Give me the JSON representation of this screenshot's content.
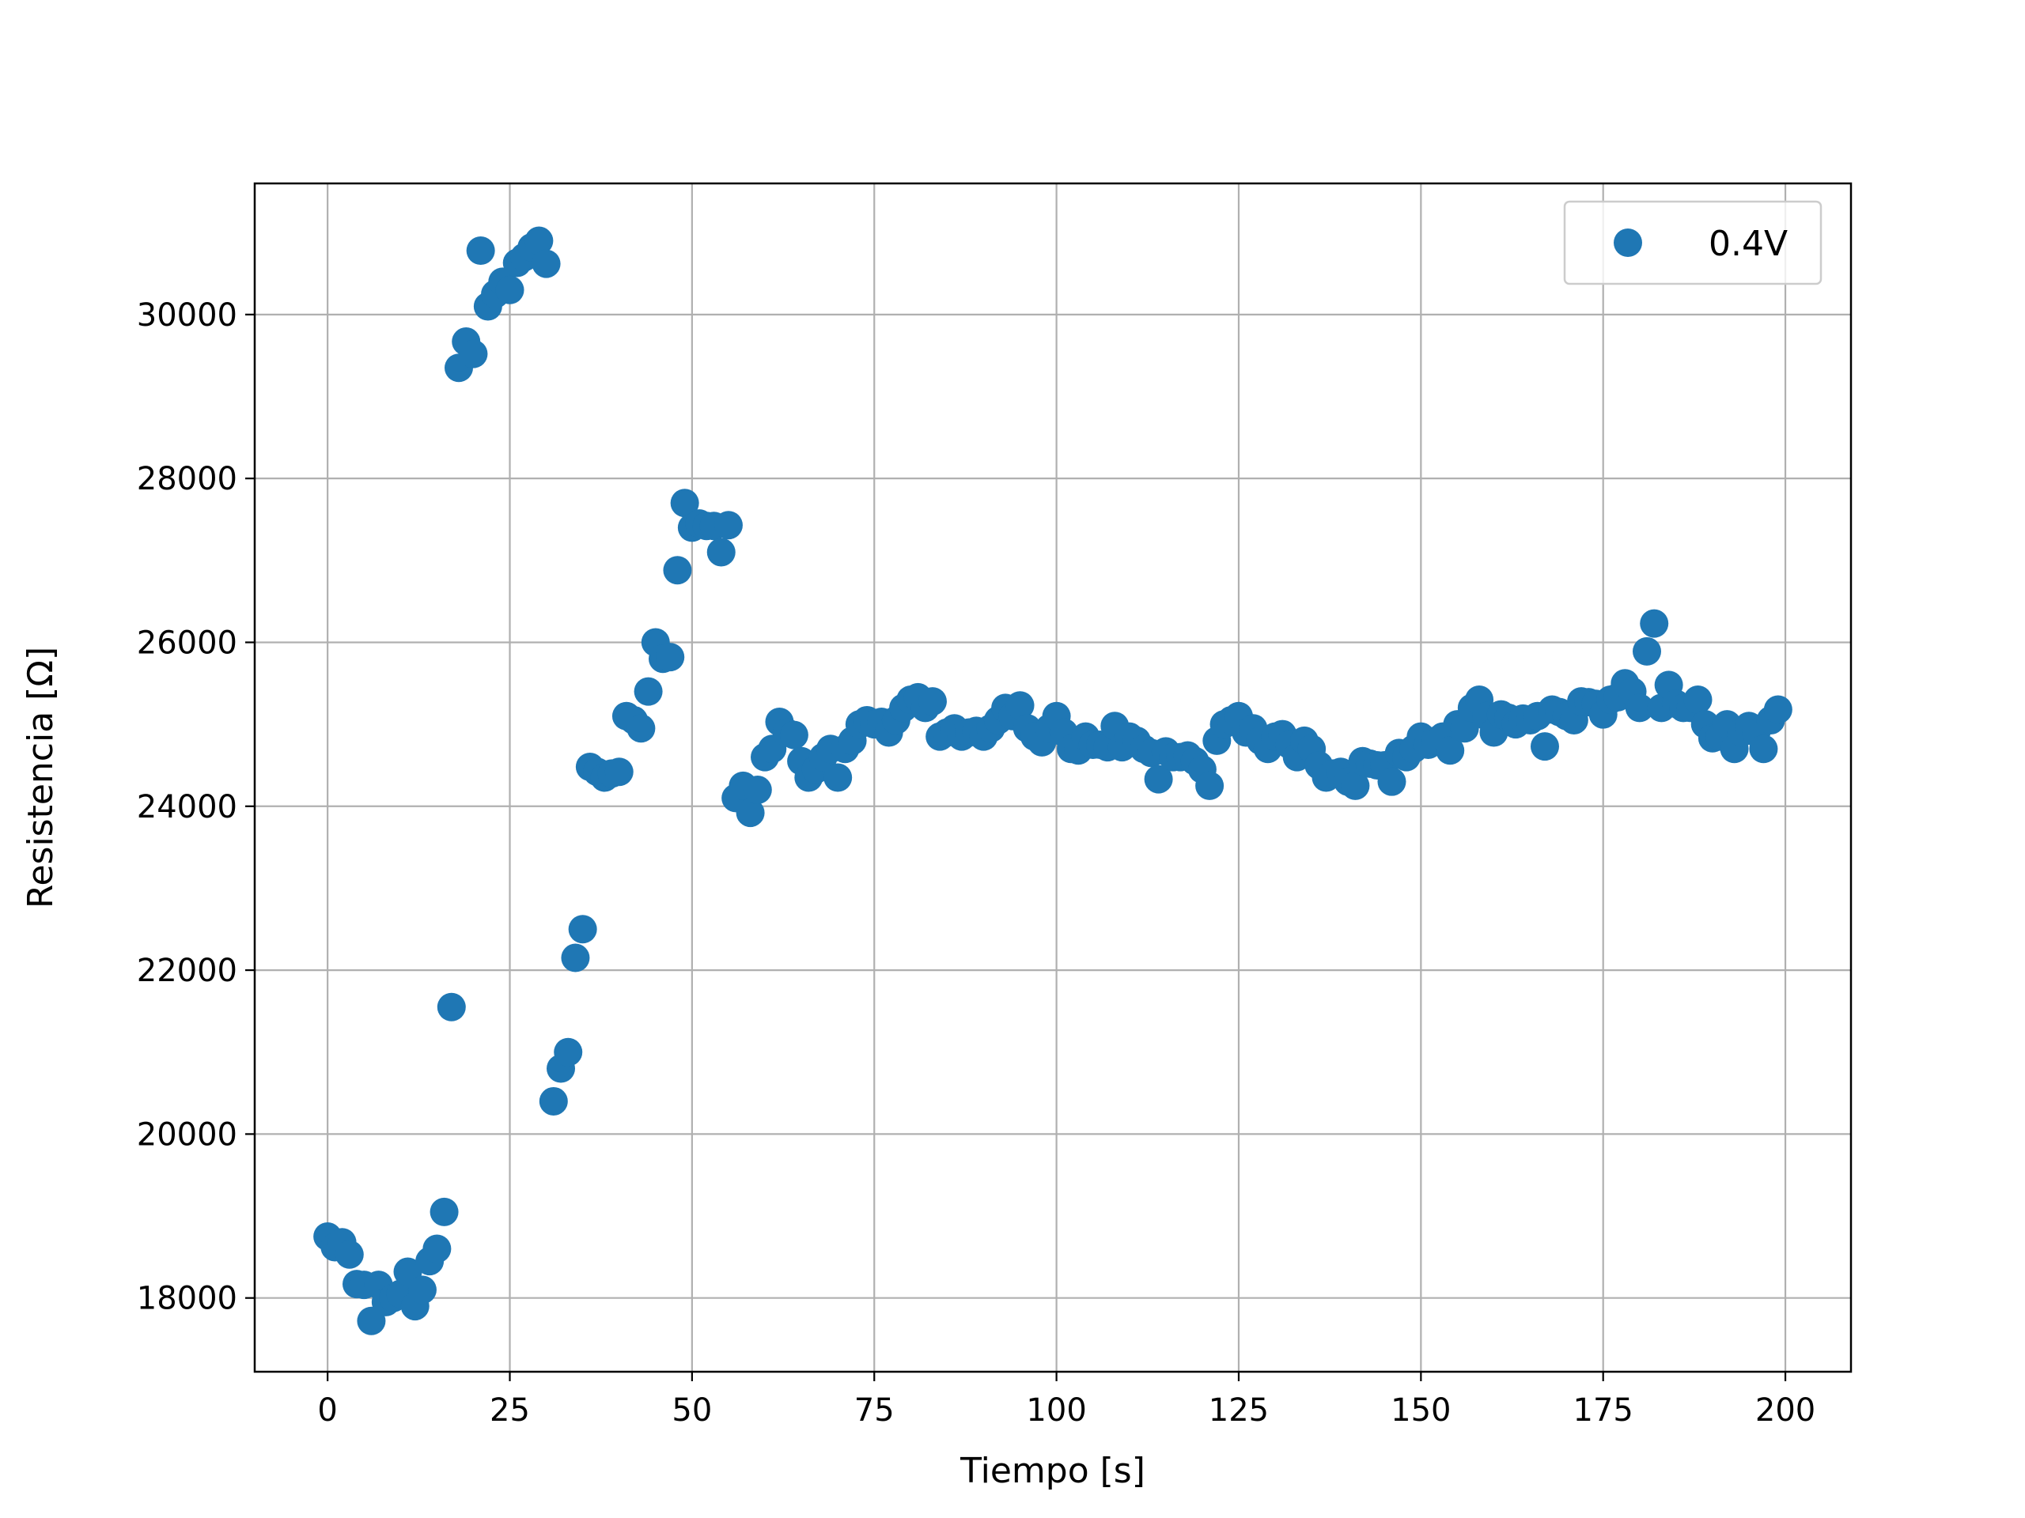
{
  "chart_data": {
    "type": "scatter",
    "title": "",
    "xlabel": "Tiempo [s]",
    "ylabel": "Resistencia [Ω]",
    "xlim": [
      -10,
      209
    ],
    "ylim": [
      17100,
      31600
    ],
    "xticks": [
      0,
      25,
      50,
      75,
      100,
      125,
      150,
      175,
      200
    ],
    "yticks": [
      18000,
      20000,
      22000,
      24000,
      26000,
      28000,
      30000
    ],
    "grid": true,
    "legend_position": "top-right",
    "series": [
      {
        "name": "0.4V",
        "color": "#1f77b4",
        "points": [
          [
            0,
            18750
          ],
          [
            1,
            18620
          ],
          [
            2,
            18680
          ],
          [
            3,
            18530
          ],
          [
            4,
            18170
          ],
          [
            5,
            18160
          ],
          [
            6,
            17720
          ],
          [
            7,
            18160
          ],
          [
            8,
            17950
          ],
          [
            9,
            18000
          ],
          [
            10,
            18050
          ],
          [
            11,
            18320
          ],
          [
            12,
            17900
          ],
          [
            13,
            18100
          ],
          [
            14,
            18450
          ],
          [
            15,
            18600
          ],
          [
            16,
            19050
          ],
          [
            17,
            21550
          ],
          [
            18,
            29350
          ],
          [
            19,
            29670
          ],
          [
            20,
            29520
          ],
          [
            21,
            30780
          ],
          [
            22,
            30100
          ],
          [
            23,
            30250
          ],
          [
            24,
            30400
          ],
          [
            25,
            30300
          ],
          [
            26,
            30630
          ],
          [
            27,
            30700
          ],
          [
            28,
            30820
          ],
          [
            29,
            30900
          ],
          [
            30,
            30620
          ],
          [
            31,
            20400
          ],
          [
            32,
            20800
          ],
          [
            33,
            21000
          ],
          [
            34,
            22150
          ],
          [
            35,
            22500
          ],
          [
            36,
            24480
          ],
          [
            37,
            24420
          ],
          [
            38,
            24350
          ],
          [
            39,
            24400
          ],
          [
            40,
            24420
          ],
          [
            41,
            25100
          ],
          [
            42,
            25050
          ],
          [
            43,
            24950
          ],
          [
            44,
            25400
          ],
          [
            45,
            26000
          ],
          [
            46,
            25800
          ],
          [
            47,
            25820
          ],
          [
            48,
            26880
          ],
          [
            49,
            27700
          ],
          [
            50,
            27400
          ],
          [
            51,
            27450
          ],
          [
            52,
            27420
          ],
          [
            53,
            27420
          ],
          [
            54,
            27100
          ],
          [
            55,
            27430
          ],
          [
            56,
            24100
          ],
          [
            57,
            24250
          ],
          [
            58,
            23920
          ],
          [
            59,
            24200
          ],
          [
            60,
            24600
          ],
          [
            61,
            24700
          ],
          [
            62,
            25030
          ],
          [
            63,
            24900
          ],
          [
            64,
            24870
          ],
          [
            65,
            24550
          ],
          [
            66,
            24350
          ],
          [
            67,
            24450
          ],
          [
            68,
            24600
          ],
          [
            69,
            24700
          ],
          [
            70,
            24350
          ],
          [
            71,
            24700
          ],
          [
            72,
            24800
          ],
          [
            73,
            25000
          ],
          [
            74,
            25050
          ],
          [
            75,
            25000
          ],
          [
            76,
            25030
          ],
          [
            77,
            24900
          ],
          [
            78,
            25050
          ],
          [
            79,
            25200
          ],
          [
            80,
            25300
          ],
          [
            81,
            25330
          ],
          [
            82,
            25200
          ],
          [
            83,
            25280
          ],
          [
            84,
            24850
          ],
          [
            85,
            24900
          ],
          [
            86,
            24950
          ],
          [
            87,
            24850
          ],
          [
            88,
            24900
          ],
          [
            89,
            24920
          ],
          [
            90,
            24850
          ],
          [
            91,
            24950
          ],
          [
            92,
            25050
          ],
          [
            93,
            25200
          ],
          [
            94,
            25100
          ],
          [
            95,
            25230
          ],
          [
            96,
            24950
          ],
          [
            97,
            24850
          ],
          [
            98,
            24780
          ],
          [
            99,
            24950
          ],
          [
            100,
            25100
          ],
          [
            101,
            24900
          ],
          [
            102,
            24700
          ],
          [
            103,
            24680
          ],
          [
            104,
            24850
          ],
          [
            105,
            24750
          ],
          [
            106,
            24750
          ],
          [
            107,
            24720
          ],
          [
            108,
            24980
          ],
          [
            109,
            24720
          ],
          [
            110,
            24850
          ],
          [
            111,
            24800
          ],
          [
            112,
            24700
          ],
          [
            113,
            24650
          ],
          [
            114,
            24330
          ],
          [
            115,
            24670
          ],
          [
            116,
            24600
          ],
          [
            117,
            24600
          ],
          [
            118,
            24620
          ],
          [
            119,
            24550
          ],
          [
            120,
            24450
          ],
          [
            121,
            24250
          ],
          [
            122,
            24800
          ],
          [
            123,
            25000
          ],
          [
            124,
            25050
          ],
          [
            125,
            25100
          ],
          [
            126,
            24900
          ],
          [
            127,
            24950
          ],
          [
            128,
            24800
          ],
          [
            129,
            24700
          ],
          [
            130,
            24850
          ],
          [
            131,
            24880
          ],
          [
            132,
            24750
          ],
          [
            133,
            24600
          ],
          [
            134,
            24800
          ],
          [
            135,
            24700
          ],
          [
            136,
            24500
          ],
          [
            137,
            24350
          ],
          [
            138,
            24400
          ],
          [
            139,
            24420
          ],
          [
            140,
            24300
          ],
          [
            141,
            24250
          ],
          [
            142,
            24550
          ],
          [
            143,
            24520
          ],
          [
            144,
            24500
          ],
          [
            145,
            24500
          ],
          [
            146,
            24300
          ],
          [
            147,
            24650
          ],
          [
            148,
            24600
          ],
          [
            149,
            24700
          ],
          [
            150,
            24850
          ],
          [
            151,
            24750
          ],
          [
            152,
            24800
          ],
          [
            153,
            24850
          ],
          [
            154,
            24680
          ],
          [
            155,
            25000
          ],
          [
            156,
            24950
          ],
          [
            157,
            25200
          ],
          [
            158,
            25300
          ],
          [
            159,
            25100
          ],
          [
            160,
            24900
          ],
          [
            161,
            25120
          ],
          [
            162,
            25080
          ],
          [
            163,
            25000
          ],
          [
            164,
            25070
          ],
          [
            165,
            25050
          ],
          [
            166,
            25100
          ],
          [
            167,
            24730
          ],
          [
            168,
            25180
          ],
          [
            169,
            25150
          ],
          [
            170,
            25100
          ],
          [
            171,
            25050
          ],
          [
            172,
            25280
          ],
          [
            173,
            25270
          ],
          [
            174,
            25250
          ],
          [
            175,
            25120
          ],
          [
            176,
            25300
          ],
          [
            177,
            25330
          ],
          [
            178,
            25500
          ],
          [
            179,
            25400
          ],
          [
            180,
            25200
          ],
          [
            181,
            25890
          ],
          [
            182,
            26230
          ],
          [
            183,
            25200
          ],
          [
            184,
            25480
          ],
          [
            185,
            25250
          ],
          [
            186,
            25200
          ],
          [
            187,
            25200
          ],
          [
            188,
            25300
          ],
          [
            189,
            25000
          ],
          [
            190,
            24830
          ],
          [
            191,
            24850
          ],
          [
            192,
            25000
          ],
          [
            193,
            24700
          ],
          [
            194,
            24900
          ],
          [
            195,
            24980
          ],
          [
            196,
            24900
          ],
          [
            197,
            24700
          ],
          [
            198,
            25050
          ],
          [
            199,
            25180
          ]
        ]
      }
    ]
  }
}
